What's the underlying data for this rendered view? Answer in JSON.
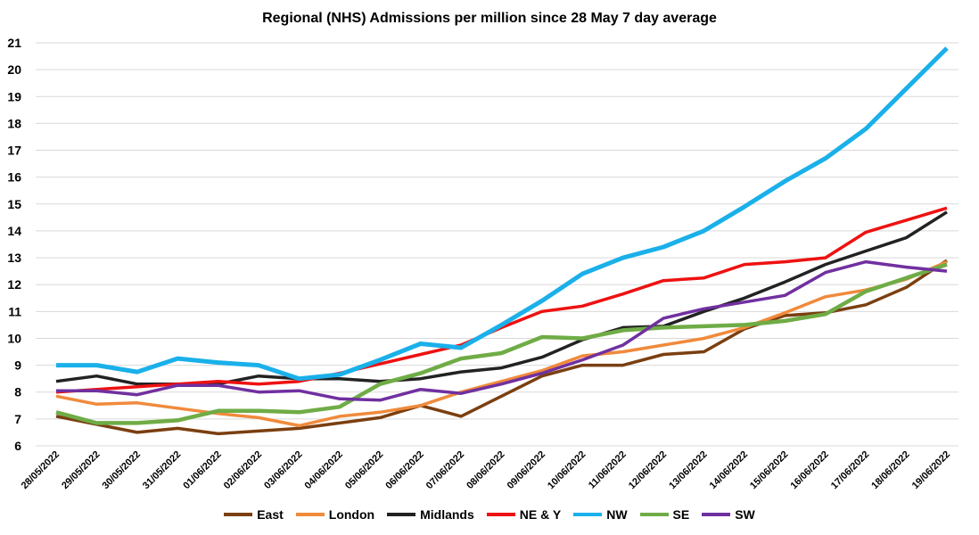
{
  "chart_data": {
    "type": "line",
    "title": "Regional (NHS) Admissions per million since 28 May 7 day average",
    "xlabel": "",
    "ylabel": "",
    "ylim": [
      6,
      21
    ],
    "yticks": [
      6,
      7,
      8,
      9,
      10,
      11,
      12,
      13,
      14,
      15,
      16,
      17,
      18,
      19,
      20,
      21
    ],
    "grid": true,
    "legend": "bottom",
    "x": [
      "28/05/2022",
      "29/05/2022",
      "30/05/2022",
      "31/05/2022",
      "01/06/2022",
      "02/06/2022",
      "03/06/2022",
      "04/06/2022",
      "05/06/2022",
      "06/06/2022",
      "07/06/2022",
      "08/06/2022",
      "09/06/2022",
      "10/06/2022",
      "11/06/2022",
      "12/06/2022",
      "13/06/2022",
      "14/06/2022",
      "15/06/2022",
      "16/06/2022",
      "17/06/2022",
      "18/06/2022",
      "19/06/2022"
    ],
    "series": [
      {
        "name": "East",
        "color": "#7B3F10",
        "values": [
          7.1,
          6.8,
          6.5,
          6.65,
          6.45,
          6.55,
          6.65,
          6.85,
          7.05,
          7.5,
          7.1,
          7.85,
          8.6,
          9.0,
          9.0,
          9.4,
          9.5,
          10.35,
          10.85,
          10.95,
          11.25,
          11.9,
          12.9
        ]
      },
      {
        "name": "London",
        "color": "#F08A3C",
        "values": [
          7.85,
          7.55,
          7.6,
          7.4,
          7.2,
          7.05,
          6.75,
          7.1,
          7.25,
          7.5,
          8.0,
          8.4,
          8.8,
          9.35,
          9.5,
          9.75,
          10.0,
          10.4,
          10.95,
          11.55,
          11.8,
          12.2,
          12.85
        ]
      },
      {
        "name": "Midlands",
        "color": "#222222",
        "values": [
          8.4,
          8.6,
          8.3,
          8.3,
          8.3,
          8.6,
          8.5,
          8.5,
          8.4,
          8.5,
          8.75,
          8.9,
          9.3,
          9.95,
          10.4,
          10.45,
          11.0,
          11.5,
          12.1,
          12.75,
          13.25,
          13.75,
          14.7
        ]
      },
      {
        "name": "NE & Y",
        "color": "#EE1111",
        "values": [
          8.0,
          8.1,
          8.2,
          8.3,
          8.4,
          8.3,
          8.4,
          8.7,
          9.05,
          9.4,
          9.75,
          10.4,
          11.0,
          11.2,
          11.65,
          12.15,
          12.25,
          12.75,
          12.85,
          13.0,
          13.95,
          14.4,
          14.85
        ]
      },
      {
        "name": "NW",
        "color": "#1AB0EA",
        "values": [
          9.0,
          9.0,
          8.75,
          9.25,
          9.1,
          9.0,
          8.5,
          8.65,
          9.2,
          9.8,
          9.65,
          10.5,
          11.4,
          12.4,
          13.0,
          13.4,
          14.0,
          14.9,
          15.85,
          16.7,
          17.8,
          19.3,
          20.8
        ]
      },
      {
        "name": "SE",
        "color": "#6FAC46",
        "values": [
          7.25,
          6.85,
          6.85,
          6.95,
          7.3,
          7.3,
          7.25,
          7.45,
          8.3,
          8.7,
          9.25,
          9.45,
          10.05,
          10.0,
          10.3,
          10.4,
          10.45,
          10.5,
          10.65,
          10.9,
          11.75,
          12.25,
          12.75
        ]
      },
      {
        "name": "SW",
        "color": "#7030A0",
        "values": [
          8.05,
          8.05,
          7.9,
          8.25,
          8.25,
          8.0,
          8.05,
          7.75,
          7.7,
          8.1,
          7.95,
          8.3,
          8.7,
          9.2,
          9.75,
          10.75,
          11.1,
          11.35,
          11.6,
          12.45,
          12.85,
          12.65,
          12.5
        ]
      }
    ]
  }
}
